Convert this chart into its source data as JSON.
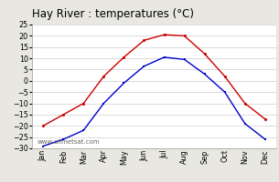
{
  "title": "Hay River : temperatures (°C)",
  "months": [
    "Jan",
    "Feb",
    "Mar",
    "Apr",
    "May",
    "Jun",
    "Jul",
    "Aug",
    "Sep",
    "Oct",
    "Nov",
    "Dec"
  ],
  "max_temps": [
    -20,
    -15,
    -10,
    2,
    10.5,
    18,
    20.5,
    20,
    12,
    2,
    -10,
    -17
  ],
  "min_temps": [
    -29,
    -26,
    -22,
    -10,
    -1,
    6.5,
    10.5,
    9.5,
    3,
    -5,
    -19,
    -26
  ],
  "max_color": "#cc0000",
  "min_color": "#0000cc",
  "ylim": [
    -30,
    25
  ],
  "yticks": [
    -30,
    -25,
    -20,
    -15,
    -10,
    -5,
    0,
    5,
    10,
    15,
    20,
    25
  ],
  "background_color": "#e8e8e0",
  "plot_bg_color": "#ffffff",
  "grid_color": "#cccccc",
  "watermark": "www.allmetsat.com",
  "title_fontsize": 8.5,
  "tick_fontsize": 5.8,
  "watermark_fontsize": 5.0
}
